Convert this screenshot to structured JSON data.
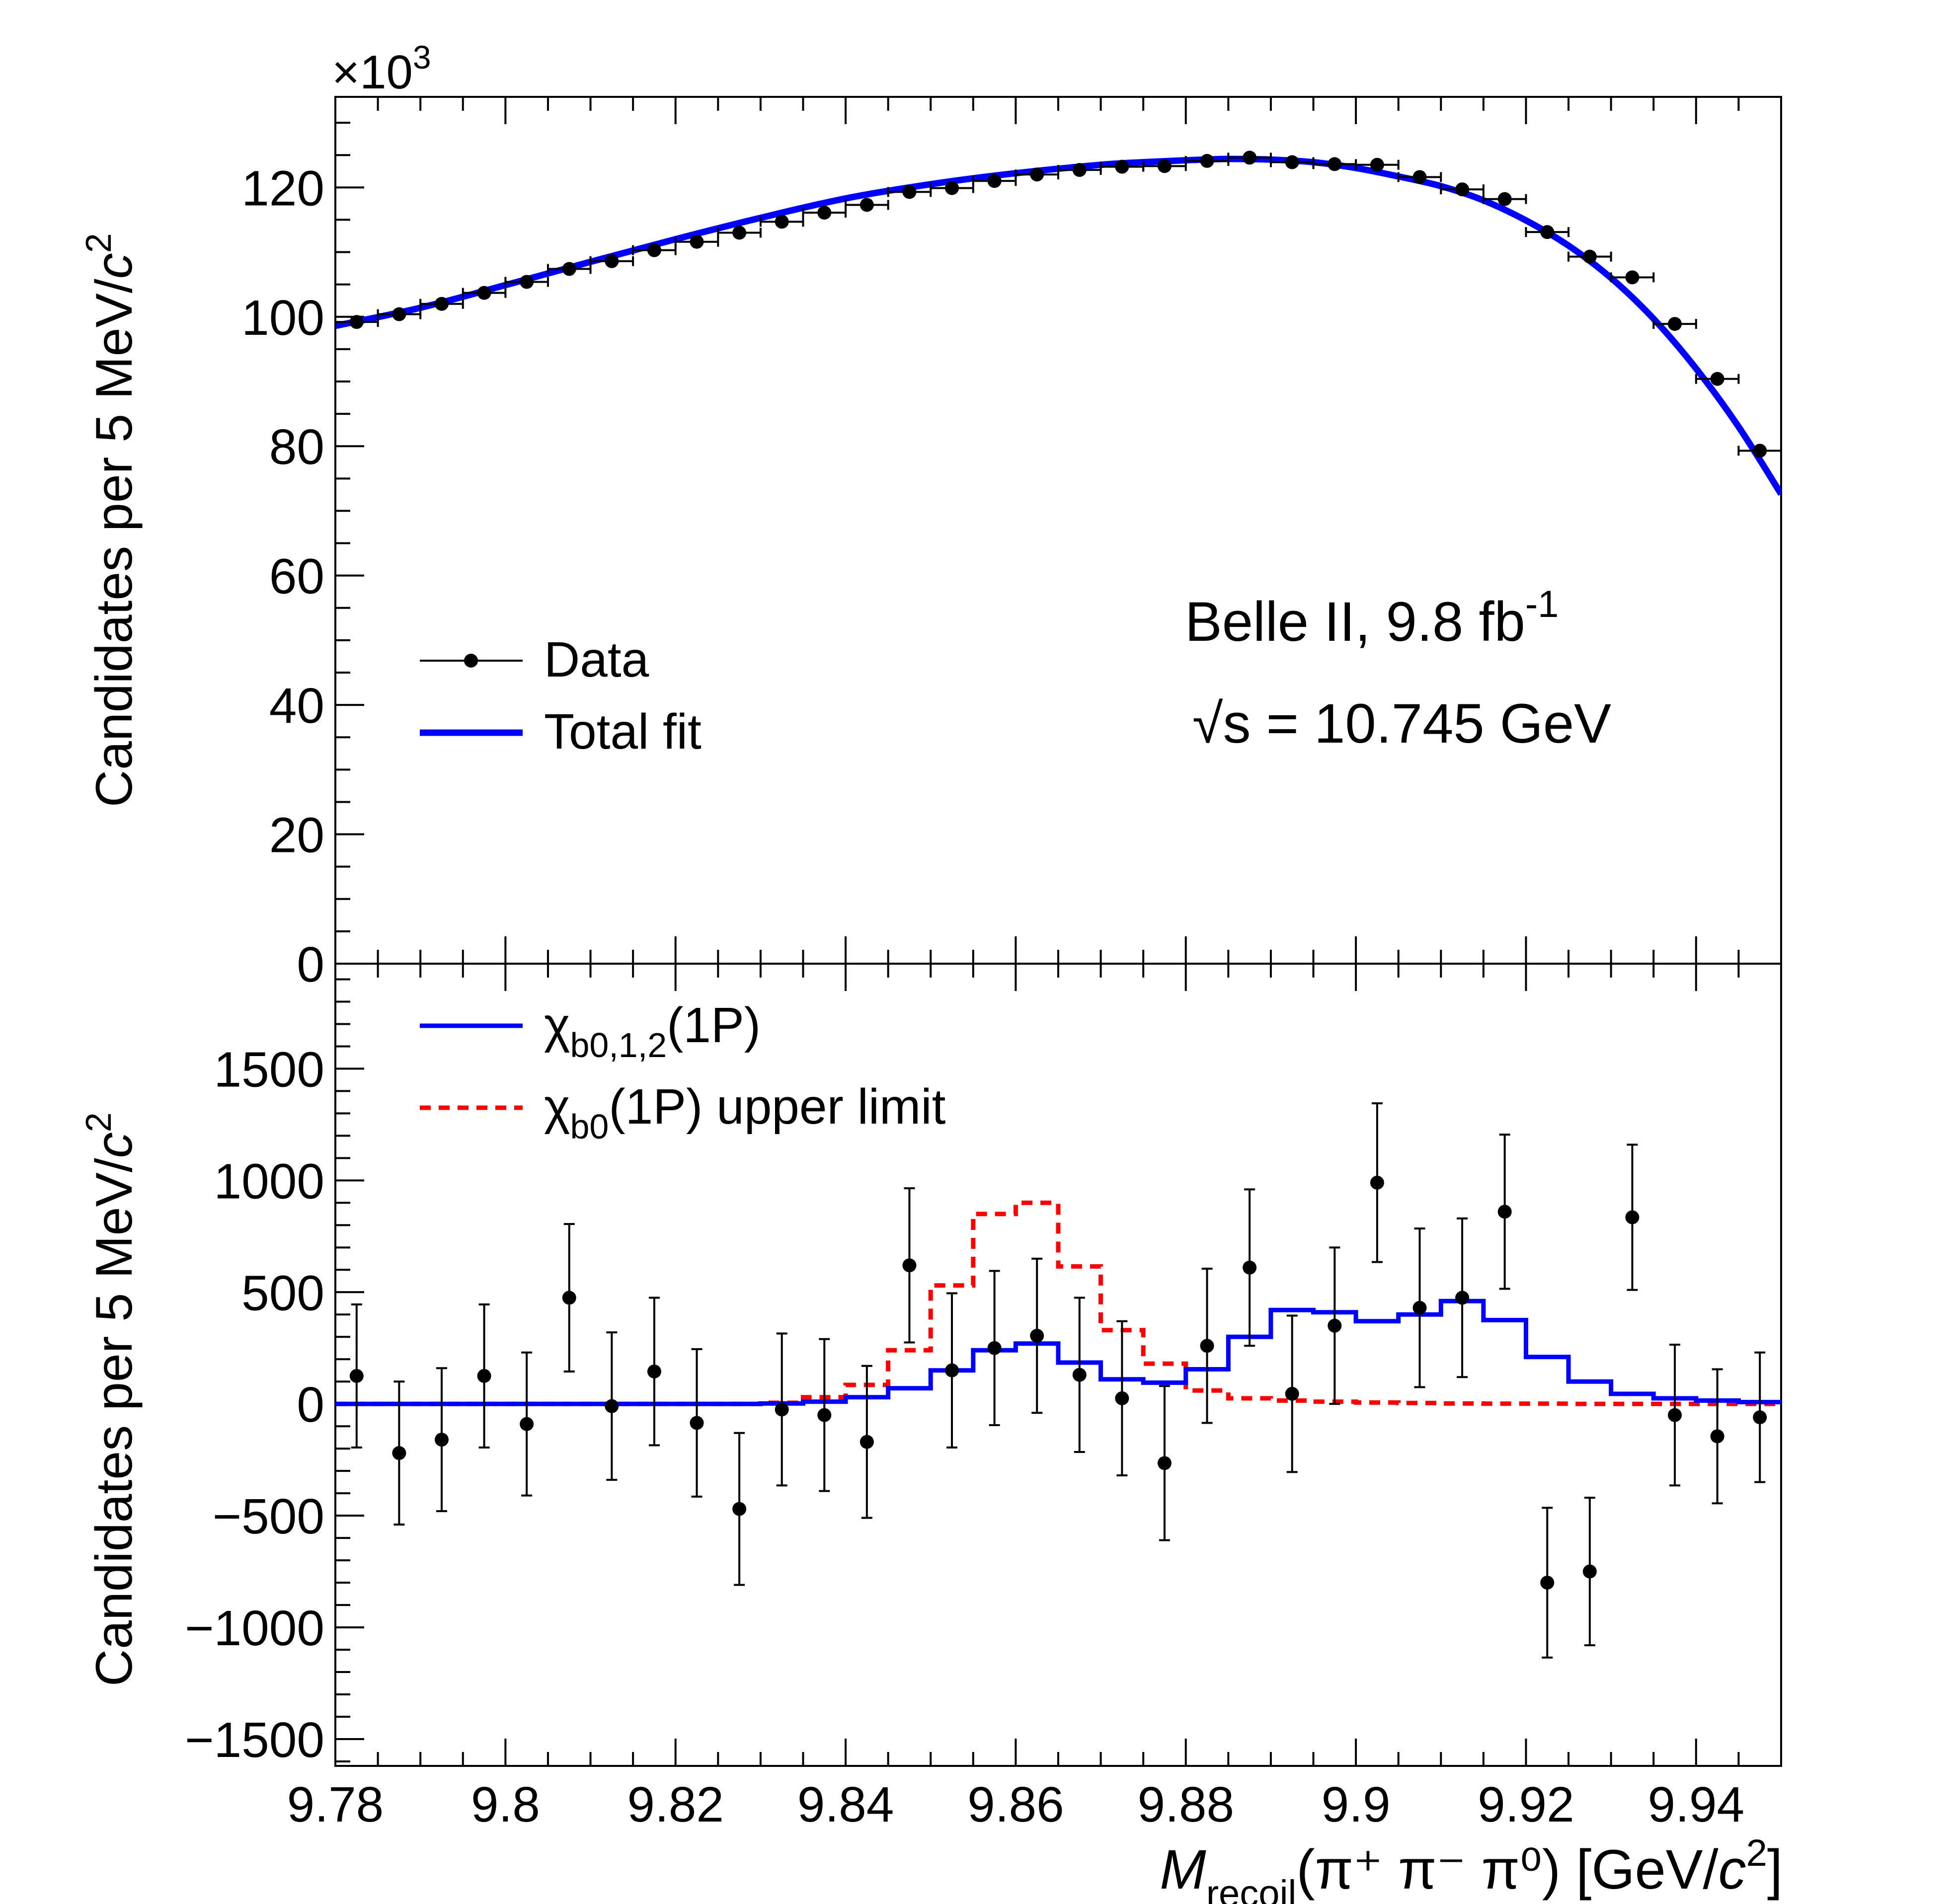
{
  "chart_data": [
    {
      "panel": "top",
      "type": "scatter",
      "ylabel_main": "Candidates per 5 MeV/",
      "ylabel_c": "c",
      "ylabel_exp": "2",
      "exponent_prefix": "×10",
      "exponent_power": "3",
      "xlim": [
        9.78,
        9.95
      ],
      "ylim": [
        0,
        134
      ],
      "y_ticks": [
        "0",
        "20",
        "40",
        "60",
        "80",
        "100",
        "120"
      ],
      "y_tick_values": [
        0,
        20,
        40,
        60,
        80,
        100,
        120
      ],
      "legend": [
        "Data",
        "Total fit"
      ],
      "annotation_line1_main": "Belle II, 9.8 fb",
      "annotation_line1_sup": "-1",
      "annotation_line2": "√s = 10.745 GeV",
      "data": {
        "x": [
          9.7825,
          9.7875,
          9.7925,
          9.7975,
          9.8025,
          9.8075,
          9.8125,
          9.8175,
          9.8225,
          9.8275,
          9.8325,
          9.8375,
          9.8425,
          9.8475,
          9.8525,
          9.8575,
          9.8625,
          9.8675,
          9.8725,
          9.8775,
          9.8825,
          9.8875,
          9.8925,
          9.8975,
          9.9025,
          9.9075,
          9.9125,
          9.9175,
          9.9225,
          9.9275,
          9.9325,
          9.9375,
          9.9425,
          9.9475
        ],
        "y": [
          99.2,
          100.4,
          102.0,
          103.7,
          105.4,
          107.4,
          108.6,
          110.3,
          111.6,
          113.0,
          114.7,
          116.1,
          117.3,
          119.3,
          119.9,
          121.0,
          122.0,
          122.7,
          123.2,
          123.3,
          124.1,
          124.6,
          123.9,
          123.6,
          123.5,
          121.6,
          119.7,
          118.2,
          113.1,
          109.3,
          106.1,
          98.9,
          90.4,
          79.3
        ]
      },
      "fit": {
        "x": [
          9.78,
          9.79,
          9.8,
          9.81,
          9.82,
          9.83,
          9.84,
          9.85,
          9.86,
          9.87,
          9.875,
          9.88,
          9.885,
          9.89,
          9.895,
          9.9,
          9.905,
          9.91,
          9.915,
          9.92,
          9.925,
          9.93,
          9.935,
          9.94,
          9.945,
          9.95
        ],
        "y": [
          98.6,
          101.4,
          104.9,
          108.5,
          112.0,
          115.3,
          118.3,
          120.5,
          122.2,
          123.5,
          123.9,
          124.2,
          124.4,
          124.3,
          123.9,
          123.0,
          121.7,
          120.2,
          118.0,
          114.9,
          111.0,
          106.0,
          99.7,
          92.0,
          83.0,
          72.6
        ]
      }
    },
    {
      "panel": "bottom",
      "type": "scatter",
      "ylabel_main": "Candidates per 5 MeV/",
      "ylabel_c": "c",
      "ylabel_exp": "2",
      "xlim": [
        9.78,
        9.95
      ],
      "ylim": [
        -1620,
        1970
      ],
      "y_ticks": [
        "−1500",
        "−1000",
        "−500",
        "0",
        "500",
        "1000",
        "1500"
      ],
      "y_tick_values": [
        -1500,
        -1000,
        -500,
        0,
        500,
        1000,
        1500
      ],
      "x_ticks": [
        "9.78",
        "9.8",
        "9.82",
        "9.84",
        "9.86",
        "9.88",
        "9.9",
        "9.92",
        "9.94"
      ],
      "x_tick_values": [
        9.78,
        9.8,
        9.82,
        9.84,
        9.86,
        9.88,
        9.9,
        9.92,
        9.94
      ],
      "xlabel_M": "M",
      "xlabel_sub": "recoil",
      "xlabel_rest": "(π⁺ π⁻ π⁰)  [GeV/",
      "xlabel_c": "c",
      "xlabel_exp": "2",
      "xlabel_close": "]",
      "legend_chi_prefix": "χ",
      "legend_chi_sub_1": "b0,1,2",
      "legend_chi_rest_1": "(1P)",
      "legend_chi_sub_2": "b0",
      "legend_chi_rest_2": "(1P) upper limit",
      "data": {
        "x": [
          9.7825,
          9.7875,
          9.7925,
          9.7975,
          9.8025,
          9.8075,
          9.8125,
          9.8175,
          9.8225,
          9.8275,
          9.8325,
          9.8375,
          9.8425,
          9.8475,
          9.8525,
          9.8575,
          9.8625,
          9.8675,
          9.8725,
          9.8775,
          9.8825,
          9.8875,
          9.8925,
          9.8975,
          9.9025,
          9.9075,
          9.9125,
          9.9175,
          9.9225,
          9.9275,
          9.9325,
          9.9375,
          9.9425,
          9.9475
        ],
        "y": [
          125,
          -220,
          -160,
          125,
          -90,
          475,
          -10,
          145,
          -85,
          -470,
          -25,
          -50,
          -170,
          620,
          150,
          250,
          305,
          130,
          25,
          -265,
          260,
          610,
          45,
          350,
          990,
          430,
          475,
          860,
          -800,
          -750,
          835,
          -50,
          -145,
          -60
        ],
        "err": [
          320,
          320,
          320,
          320,
          320,
          330,
          330,
          330,
          330,
          340,
          340,
          340,
          340,
          345,
          345,
          345,
          345,
          345,
          345,
          345,
          345,
          350,
          350,
          350,
          355,
          355,
          355,
          345,
          335,
          330,
          325,
          315,
          300,
          290
        ]
      },
      "signal_hist": {
        "edges": [
          9.78,
          9.785,
          9.79,
          9.795,
          9.8,
          9.805,
          9.81,
          9.815,
          9.82,
          9.825,
          9.83,
          9.835,
          9.84,
          9.845,
          9.85,
          9.855,
          9.86,
          9.865,
          9.87,
          9.875,
          9.88,
          9.885,
          9.89,
          9.895,
          9.9,
          9.905,
          9.91,
          9.915,
          9.92,
          9.925,
          9.93,
          9.935,
          9.94,
          9.945,
          9.95
        ],
        "values": [
          0,
          0,
          0,
          0,
          0,
          0,
          0,
          0,
          0,
          0,
          2,
          10,
          30,
          70,
          150,
          240,
          270,
          185,
          110,
          95,
          155,
          300,
          420,
          410,
          370,
          400,
          460,
          375,
          210,
          100,
          45,
          25,
          15,
          8
        ]
      },
      "upper_limit_hist": {
        "edges": [
          9.78,
          9.785,
          9.79,
          9.795,
          9.8,
          9.805,
          9.81,
          9.815,
          9.82,
          9.825,
          9.83,
          9.835,
          9.84,
          9.845,
          9.85,
          9.855,
          9.86,
          9.865,
          9.87,
          9.875,
          9.88,
          9.885,
          9.89,
          9.895,
          9.9,
          9.905,
          9.91,
          9.915,
          9.92,
          9.925,
          9.93,
          9.935,
          9.94,
          9.945,
          9.95
        ],
        "values": [
          0,
          0,
          0,
          0,
          0,
          0,
          0,
          0,
          0,
          0,
          5,
          30,
          85,
          240,
          530,
          850,
          900,
          615,
          330,
          180,
          60,
          25,
          15,
          10,
          6,
          4,
          2,
          1,
          1,
          0,
          0,
          0,
          0,
          0
        ]
      }
    }
  ],
  "colors": {
    "fit": "#0000ff",
    "upper_limit": "#ff0000",
    "data": "#000000"
  }
}
